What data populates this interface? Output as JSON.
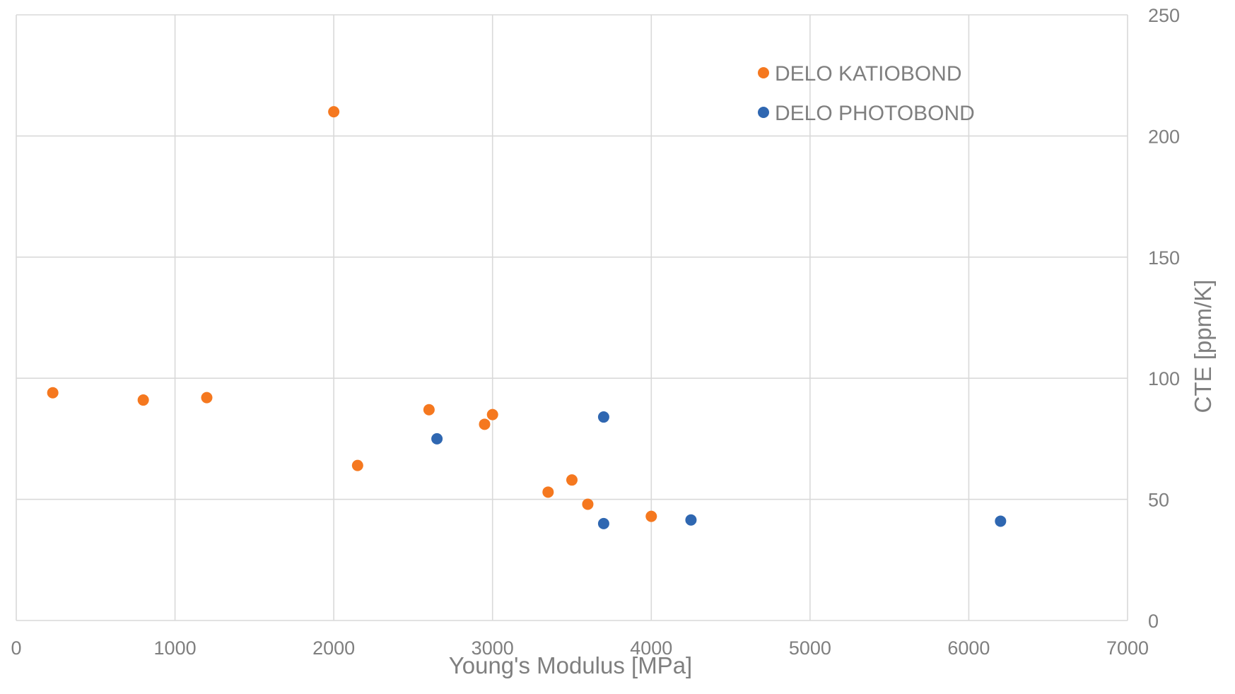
{
  "chart_data": {
    "type": "scatter",
    "title": "",
    "xlabel": "Young's Modulus [MPa]",
    "ylabel": "CTE [ppm/K]",
    "xlim": [
      0,
      7000
    ],
    "ylim": [
      0,
      250
    ],
    "x_ticks": [
      "0",
      "1000",
      "2000",
      "3000",
      "4000",
      "5000",
      "6000",
      "7000"
    ],
    "y_ticks": [
      "0",
      "50",
      "100",
      "150",
      "200",
      "250"
    ],
    "y_axis_position": "right",
    "grid": true,
    "legend_position": "top-right",
    "series": [
      {
        "name": "DELO KATIOBOND",
        "color": "#f5781f",
        "points": [
          {
            "x": 230,
            "y": 94
          },
          {
            "x": 800,
            "y": 91
          },
          {
            "x": 1200,
            "y": 92
          },
          {
            "x": 2000,
            "y": 210
          },
          {
            "x": 2150,
            "y": 64
          },
          {
            "x": 2600,
            "y": 87
          },
          {
            "x": 2950,
            "y": 81
          },
          {
            "x": 3000,
            "y": 85
          },
          {
            "x": 3350,
            "y": 53
          },
          {
            "x": 3500,
            "y": 58
          },
          {
            "x": 3600,
            "y": 48
          },
          {
            "x": 4000,
            "y": 43
          }
        ]
      },
      {
        "name": "DELO PHOTOBOND",
        "color": "#2f67b1",
        "points": [
          {
            "x": 2650,
            "y": 75
          },
          {
            "x": 3700,
            "y": 84
          },
          {
            "x": 3700,
            "y": 40
          },
          {
            "x": 4250,
            "y": 41.5
          },
          {
            "x": 6200,
            "y": 41
          }
        ]
      }
    ]
  }
}
